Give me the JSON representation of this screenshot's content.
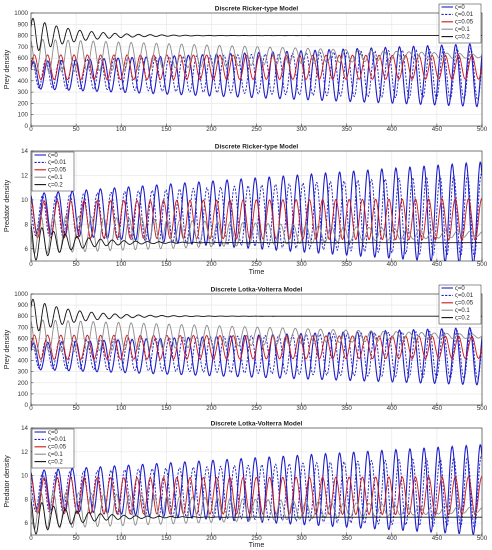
{
  "chart_data": [
    {
      "type": "line",
      "title": "Discrete Ricker-type Model",
      "xlabel": "",
      "ylabel": "Prey density",
      "xlim": [
        0,
        500
      ],
      "ylim": [
        0,
        1000
      ],
      "xticks": [
        0,
        50,
        100,
        150,
        200,
        250,
        300,
        350,
        400,
        450,
        500
      ],
      "yticks": [
        0,
        100,
        200,
        300,
        400,
        500,
        600,
        700,
        800,
        900,
        1000
      ],
      "grid": true,
      "legend_position": "top-right",
      "series": [
        {
          "name": "ς=0",
          "color": "#1f1fc8",
          "style": "solid",
          "period": 15.6,
          "phase": 0.4,
          "equilibrium": 450,
          "amp_start": 120,
          "amp_end": 280
        },
        {
          "name": "ς=0.01",
          "color": "#1f1fc8",
          "style": "dashed",
          "period": 15.2,
          "phase": 1.1,
          "equilibrium": 460,
          "amp_start": 120,
          "amp_end": 230
        },
        {
          "name": "ς=0.05",
          "color": "#d01515",
          "style": "solid",
          "period": 14.7,
          "phase": 0.0,
          "equilibrium": 520,
          "amp_start": 110,
          "amp_end": 105
        },
        {
          "name": "ς=0.1",
          "color": "#8c8c8c",
          "style": "solid",
          "period": 14.0,
          "phase": 2.0,
          "equilibrium": 620,
          "amp_start": 150,
          "amp_end": 15
        },
        {
          "name": "ς=0.2",
          "color": "#111111",
          "style": "solid",
          "period": 13.0,
          "phase": 0.5,
          "equilibrium": 800,
          "amp_start": 160,
          "amp_end": 0,
          "decay": 45
        }
      ]
    },
    {
      "type": "line",
      "title": "Discrete Ricker-type Model",
      "xlabel": "Time",
      "ylabel": "Predator density",
      "xlim": [
        0,
        500
      ],
      "ylim": [
        5,
        14
      ],
      "xticks": [
        0,
        50,
        100,
        150,
        200,
        250,
        300,
        350,
        400,
        450,
        500
      ],
      "yticks": [
        6,
        8,
        10,
        12,
        14
      ],
      "grid": true,
      "legend_position": "top-left",
      "series": [
        {
          "name": "ς=0",
          "color": "#1f1fc8",
          "style": "solid",
          "period": 15.6,
          "phase": 2.0,
          "equilibrium": 8.9,
          "amp_start": 1.6,
          "amp_end": 4.2
        },
        {
          "name": "ς=0.01",
          "color": "#1f1fc8",
          "style": "dashed",
          "period": 15.2,
          "phase": 2.6,
          "equilibrium": 8.7,
          "amp_start": 1.6,
          "amp_end": 3.4
        },
        {
          "name": "ς=0.05",
          "color": "#d01515",
          "style": "solid",
          "period": 14.7,
          "phase": 1.6,
          "equilibrium": 8.4,
          "amp_start": 1.5,
          "amp_end": 1.7
        },
        {
          "name": "ς=0.1",
          "color": "#8c8c8c",
          "style": "solid",
          "period": 14.0,
          "phase": 3.0,
          "equilibrium": 7.2,
          "amp_start": 1.6,
          "amp_end": 0.2
        },
        {
          "name": "ς=0.2",
          "color": "#111111",
          "style": "solid",
          "period": 13.0,
          "phase": 2.0,
          "equilibrium": 6.5,
          "amp_start": 1.6,
          "amp_end": 0.0,
          "decay": 45
        }
      ]
    },
    {
      "type": "line",
      "title": "Discrete Lotka-Volterra Model",
      "xlabel": "",
      "ylabel": "Prey density",
      "xlim": [
        0,
        500
      ],
      "ylim": [
        0,
        1000
      ],
      "xticks": [
        0,
        50,
        100,
        150,
        200,
        250,
        300,
        350,
        400,
        450,
        500
      ],
      "yticks": [
        0,
        100,
        200,
        300,
        400,
        500,
        600,
        700,
        800,
        900,
        1000
      ],
      "grid": true,
      "legend_position": "top-right",
      "series": [
        {
          "name": "ς=0",
          "color": "#1f1fc8",
          "style": "solid",
          "period": 15.6,
          "phase": 0.4,
          "equilibrium": 440,
          "amp_start": 120,
          "amp_end": 260
        },
        {
          "name": "ς=0.01",
          "color": "#1f1fc8",
          "style": "dashed",
          "period": 15.2,
          "phase": 1.1,
          "equilibrium": 455,
          "amp_start": 120,
          "amp_end": 220
        },
        {
          "name": "ς=0.05",
          "color": "#d01515",
          "style": "solid",
          "period": 14.7,
          "phase": 0.0,
          "equilibrium": 520,
          "amp_start": 110,
          "amp_end": 100
        },
        {
          "name": "ς=0.1",
          "color": "#8c8c8c",
          "style": "solid",
          "period": 14.0,
          "phase": 2.0,
          "equilibrium": 620,
          "amp_start": 150,
          "amp_end": 15
        },
        {
          "name": "ς=0.2",
          "color": "#111111",
          "style": "solid",
          "period": 13.0,
          "phase": 0.5,
          "equilibrium": 800,
          "amp_start": 160,
          "amp_end": 0,
          "decay": 45
        }
      ]
    },
    {
      "type": "line",
      "title": "Discrete Lotka-Volterra Model",
      "xlabel": "Time",
      "ylabel": "Predator density",
      "xlim": [
        0,
        500
      ],
      "ylim": [
        5,
        14
      ],
      "xticks": [
        0,
        50,
        100,
        150,
        200,
        250,
        300,
        350,
        400,
        450,
        500
      ],
      "yticks": [
        6,
        8,
        10,
        12,
        14
      ],
      "grid": true,
      "legend_position": "top-left",
      "series": [
        {
          "name": "ς=0",
          "color": "#1f1fc8",
          "style": "solid",
          "period": 15.6,
          "phase": 2.0,
          "equilibrium": 8.8,
          "amp_start": 1.6,
          "amp_end": 3.8
        },
        {
          "name": "ς=0.01",
          "color": "#1f1fc8",
          "style": "dashed",
          "period": 15.2,
          "phase": 2.6,
          "equilibrium": 8.6,
          "amp_start": 1.6,
          "amp_end": 3.0
        },
        {
          "name": "ς=0.05",
          "color": "#d01515",
          "style": "solid",
          "period": 14.7,
          "phase": 1.6,
          "equilibrium": 8.3,
          "amp_start": 1.5,
          "amp_end": 1.6
        },
        {
          "name": "ς=0.1",
          "color": "#8c8c8c",
          "style": "solid",
          "period": 14.0,
          "phase": 3.0,
          "equilibrium": 7.1,
          "amp_start": 1.6,
          "amp_end": 0.2
        },
        {
          "name": "ς=0.2",
          "color": "#111111",
          "style": "solid",
          "period": 13.0,
          "phase": 2.0,
          "equilibrium": 6.5,
          "amp_start": 1.6,
          "amp_end": 0.0,
          "decay": 45
        }
      ]
    }
  ]
}
